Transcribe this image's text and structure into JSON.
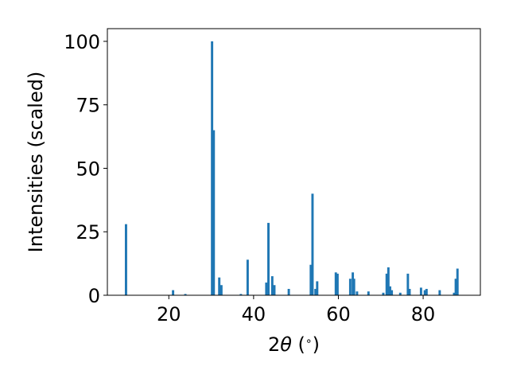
{
  "chart_data": {
    "type": "bar",
    "title": "",
    "xlabel_parts": [
      "2",
      "θ",
      " (",
      "∘",
      ")"
    ],
    "ylabel": "Intensities (scaled)",
    "xlim": [
      5.5,
      93.5
    ],
    "ylim": [
      0,
      105
    ],
    "xticks": [
      20,
      40,
      60,
      80
    ],
    "yticks": [
      0,
      25,
      50,
      75,
      100
    ],
    "bar_width": 0.55,
    "bar_color": "#1f77b4",
    "grid": false,
    "series": [
      {
        "x": [
          9.9,
          21.0,
          23.9,
          30.2,
          30.6,
          31.9,
          32.4,
          37.0,
          38.6,
          43.0,
          43.5,
          44.4,
          44.9,
          48.3,
          53.5,
          53.9,
          54.6,
          55.0,
          59.4,
          59.8,
          62.8,
          63.4,
          63.7,
          64.4,
          67.1,
          70.6,
          71.4,
          71.8,
          72.2,
          72.6,
          74.6,
          76.4,
          76.8,
          79.5,
          80.4,
          80.8,
          83.9,
          87.3,
          87.7,
          88.1
        ],
        "y": [
          28,
          2,
          0.5,
          100,
          65,
          7,
          4,
          0.5,
          14,
          5,
          28.5,
          7.5,
          4,
          2.5,
          12,
          40,
          2.5,
          5.5,
          9,
          8.5,
          6.5,
          9,
          6.5,
          1.5,
          1.5,
          1,
          8.5,
          11,
          3.5,
          2,
          1,
          8.5,
          2.5,
          3,
          2,
          2.5,
          2,
          1,
          6.5,
          10.5
        ]
      }
    ]
  }
}
